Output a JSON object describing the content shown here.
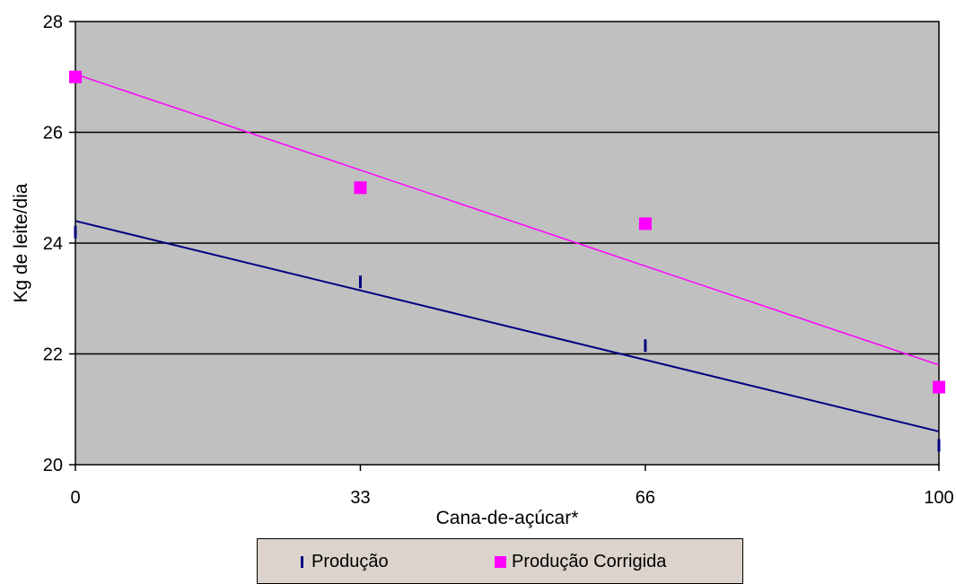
{
  "chart_data": {
    "type": "scatter",
    "xlabel": "Cana-de-açúcar*",
    "ylabel": "Kg de leite/dia",
    "xlim": [
      0,
      100
    ],
    "ylim": [
      20,
      28
    ],
    "x_ticks": [
      0,
      33,
      66,
      100
    ],
    "x_tick_labels": [
      "0",
      "33",
      "66",
      "100"
    ],
    "y_ticks": [
      20,
      22,
      24,
      26,
      28
    ],
    "y_tick_labels": [
      "20",
      "22",
      "24",
      "26",
      "28"
    ],
    "grid": "horizontal",
    "plot_background": "#c0c0c0",
    "legend_position": "bottom",
    "series": [
      {
        "name": "Produção",
        "marker": "dash",
        "color": "#000080",
        "x": [
          0,
          33,
          66,
          100
        ],
        "y": [
          24.2,
          23.3,
          22.15,
          20.35
        ],
        "trendline": {
          "type": "linear",
          "y_at_xmin": 24.4,
          "y_at_xmax": 20.6
        }
      },
      {
        "name": "Produção Corrigida",
        "marker": "square",
        "color": "#ff00ff",
        "x": [
          0,
          33,
          66,
          100
        ],
        "y": [
          27.0,
          25.0,
          24.35,
          21.4
        ],
        "trendline": {
          "type": "linear",
          "y_at_xmin": 27.05,
          "y_at_xmax": 21.8
        }
      }
    ]
  }
}
